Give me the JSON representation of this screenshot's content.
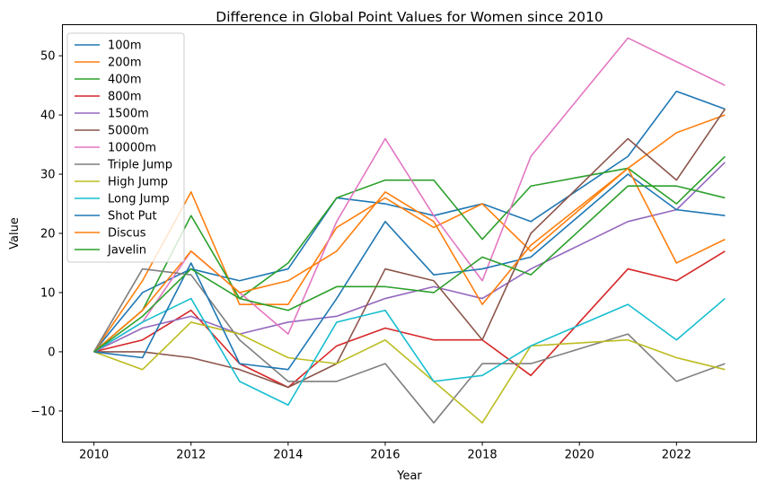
{
  "chart_data": {
    "type": "line",
    "title": "Difference in Global Point Values for Women since 2010",
    "xlabel": "Year",
    "ylabel": "Value",
    "xlim": [
      2009.35,
      2023.65
    ],
    "ylim": [
      -15.25,
      55.25
    ],
    "x_ticks": [
      2010,
      2012,
      2014,
      2016,
      2018,
      2020,
      2022
    ],
    "y_ticks": [
      -10,
      0,
      10,
      20,
      30,
      40,
      50
    ],
    "grid": false,
    "legend_position": "top-left",
    "x": [
      2010,
      2011,
      2012,
      2013,
      2014,
      2015,
      2016,
      2017,
      2018,
      2019,
      2020,
      2021,
      2022,
      2023
    ],
    "series": [
      {
        "name": "100m",
        "color": "#1f77b4",
        "values": [
          0,
          10,
          14,
          12,
          14,
          26,
          25,
          23,
          25,
          22,
          27.5,
          33,
          44,
          41
        ]
      },
      {
        "name": "200m",
        "color": "#ff7f0e",
        "values": [
          0,
          12,
          27,
          8,
          8,
          21,
          26,
          21,
          25,
          17,
          24,
          31,
          37,
          40
        ]
      },
      {
        "name": "400m",
        "color": "#2ca02c",
        "values": [
          0,
          7,
          23,
          9,
          15,
          26,
          29,
          29,
          19,
          28,
          29.5,
          31,
          25,
          33
        ]
      },
      {
        "name": "800m",
        "color": "#d62728",
        "values": [
          0,
          2,
          7,
          -2,
          -6,
          1,
          4,
          2,
          2,
          -4,
          5,
          14,
          12,
          17
        ]
      },
      {
        "name": "1500m",
        "color": "#9467bd",
        "values": [
          0,
          4,
          6,
          3,
          5,
          6,
          9,
          11,
          9,
          14,
          18,
          22,
          24,
          32
        ]
      },
      {
        "name": "5000m",
        "color": "#8c564b",
        "values": [
          0,
          0,
          -1,
          -3,
          -6,
          -2,
          14,
          12,
          2,
          20,
          28,
          36,
          29,
          41
        ]
      },
      {
        "name": "10000m",
        "color": "#e377c2",
        "values": [
          0,
          5,
          17,
          10,
          3,
          22,
          36,
          23,
          12,
          33,
          43,
          53,
          49,
          45
        ]
      },
      {
        "name": "Triple Jump",
        "color": "#7f7f7f",
        "values": [
          0,
          14,
          13,
          2,
          -5,
          -5,
          -2,
          -12,
          -2,
          -2,
          0.5,
          3,
          -5,
          -2
        ]
      },
      {
        "name": "High Jump",
        "color": "#bcbd22",
        "values": [
          0,
          -3,
          5,
          3,
          -1,
          -2,
          2,
          -5,
          -12,
          1,
          1.5,
          2,
          -1,
          -3
        ]
      },
      {
        "name": "Long Jump",
        "color": "#17becf",
        "values": [
          0,
          5,
          9,
          -5,
          -9,
          5,
          7,
          -5,
          -4,
          1,
          4.5,
          8,
          2,
          9
        ]
      },
      {
        "name": "Shot Put",
        "color": "#1f77b4",
        "values": [
          0,
          -1,
          15,
          -2,
          -3,
          9,
          22,
          13,
          14,
          16,
          23,
          30,
          24,
          23
        ]
      },
      {
        "name": "Discus",
        "color": "#ff7f0e",
        "values": [
          0,
          7,
          17,
          10,
          12,
          17,
          27,
          22,
          8,
          18,
          24.5,
          31,
          15,
          19
        ]
      },
      {
        "name": "Javelin",
        "color": "#2ca02c",
        "values": [
          0,
          6,
          14,
          9,
          7,
          11,
          11,
          10,
          16,
          13,
          20.5,
          28,
          28,
          26
        ]
      }
    ]
  }
}
